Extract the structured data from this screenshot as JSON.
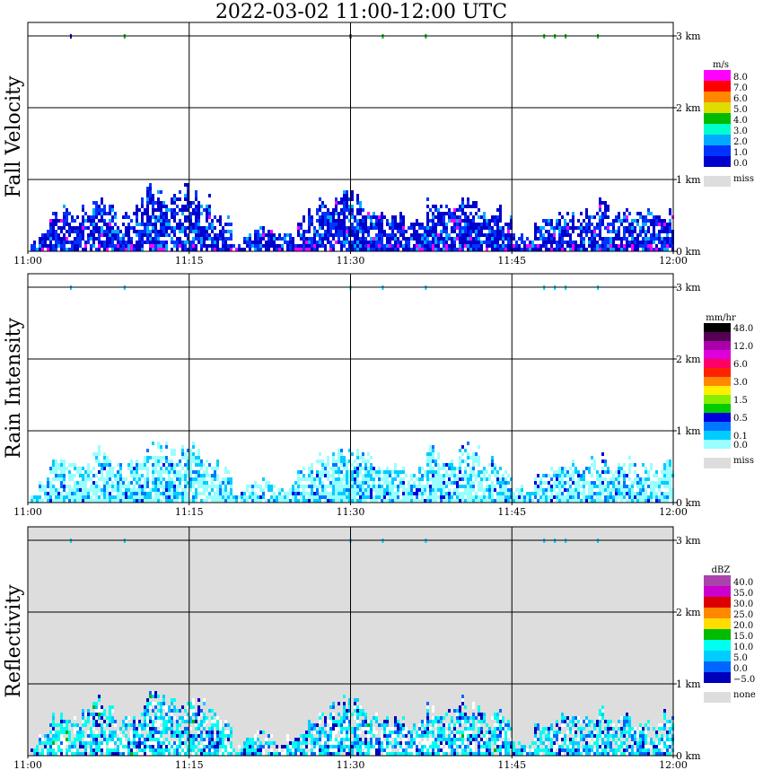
{
  "title": "2022-03-02   11:00-12:00 UTC",
  "chart_data": [
    {
      "type": "heatmap",
      "ylabel": "Fall Velocity",
      "x_ticks": [
        "11:00",
        "11:15",
        "11:30",
        "11:45",
        "12:00"
      ],
      "y_ticks": [
        "0 km",
        "1 km",
        "2 km",
        "3 km"
      ],
      "xlim": [
        "11:00",
        "12:00"
      ],
      "ylim_km": [
        0,
        3.2
      ],
      "grid": true,
      "background": "#ffffff",
      "colorbar": {
        "unit": "m/s",
        "levels": [
          {
            "label": "8.0",
            "color": "#ff00ff"
          },
          {
            "label": "7.0",
            "color": "#ff0000"
          },
          {
            "label": "6.0",
            "color": "#ff8800"
          },
          {
            "label": "5.0",
            "color": "#dddd00"
          },
          {
            "label": "4.0",
            "color": "#00bb00"
          },
          {
            "label": "3.0",
            "color": "#00ffcc"
          },
          {
            "label": "2.0",
            "color": "#00aaff"
          },
          {
            "label": "1.0",
            "color": "#0033ff"
          },
          {
            "label": "0.0",
            "color": "#0000cc"
          }
        ],
        "missing_label": "miss",
        "missing_color": "#dddddd"
      },
      "top_marks": [
        {
          "time": "11:04",
          "color": "#0000cc"
        },
        {
          "time": "11:09",
          "color": "#00bb00"
        },
        {
          "time": "11:30",
          "color": "#000000"
        },
        {
          "time": "11:33",
          "color": "#00bb00"
        },
        {
          "time": "11:37",
          "color": "#00bb00"
        },
        {
          "time": "11:48",
          "color": "#00bb00"
        },
        {
          "time": "11:49",
          "color": "#00bb00"
        },
        {
          "time": "11:50",
          "color": "#00bb00"
        },
        {
          "time": "11:53",
          "color": "#00bb00"
        }
      ],
      "echo_tops_km": [
        0.1,
        0.3,
        0.55,
        0.6,
        0.5,
        0.6,
        0.75,
        0.7,
        0.5,
        0.55,
        0.65,
        0.85,
        0.8,
        0.75,
        0.85,
        0.8,
        0.7,
        0.6,
        0.45,
        0.1,
        0.25,
        0.35,
        0.3,
        0.2,
        0.25,
        0.45,
        0.55,
        0.65,
        0.7,
        0.8,
        0.75,
        0.6,
        0.55,
        0.5,
        0.55,
        0.4,
        0.5,
        0.7,
        0.65,
        0.6,
        0.8,
        0.7,
        0.55,
        0.6,
        0.5,
        0.2,
        0.15,
        0.4,
        0.5,
        0.55,
        0.6,
        0.55,
        0.6,
        0.65,
        0.5,
        0.6,
        0.5,
        0.55,
        0.45,
        0.55
      ]
    },
    {
      "type": "heatmap",
      "ylabel": "Rain Intensity",
      "x_ticks": [
        "11:00",
        "11:15",
        "11:30",
        "11:45",
        "12:00"
      ],
      "y_ticks": [
        "0 km",
        "1 km",
        "2 km",
        "3 km"
      ],
      "xlim": [
        "11:00",
        "12:00"
      ],
      "ylim_km": [
        0,
        3.2
      ],
      "grid": true,
      "background": "#ffffff",
      "colorbar": {
        "unit": "mm/hr",
        "levels": [
          {
            "label": "48.0",
            "color": "#000000"
          },
          {
            "label": "",
            "color": "#550055"
          },
          {
            "label": "12.0",
            "color": "#aa00aa"
          },
          {
            "label": "",
            "color": "#dd00dd"
          },
          {
            "label": "6.0",
            "color": "#ff0066"
          },
          {
            "label": "",
            "color": "#ff2200"
          },
          {
            "label": "3.0",
            "color": "#ff8800"
          },
          {
            "label": "",
            "color": "#ffee00"
          },
          {
            "label": "1.5",
            "color": "#88ee00"
          },
          {
            "label": "",
            "color": "#00cc00"
          },
          {
            "label": "0.5",
            "color": "#0000dd"
          },
          {
            "label": "",
            "color": "#0077ff"
          },
          {
            "label": "0.1",
            "color": "#00ccff"
          },
          {
            "label": "0.0",
            "color": "#99ffff"
          }
        ],
        "missing_label": "miss",
        "missing_color": "#dddddd"
      },
      "top_marks": [
        {
          "time": "11:04",
          "color": "#00ccff"
        },
        {
          "time": "11:09",
          "color": "#00ccff"
        },
        {
          "time": "11:30",
          "color": "#00ccff"
        },
        {
          "time": "11:33",
          "color": "#00ccff"
        },
        {
          "time": "11:37",
          "color": "#00ccff"
        },
        {
          "time": "11:48",
          "color": "#00ccff"
        },
        {
          "time": "11:49",
          "color": "#00ccff"
        },
        {
          "time": "11:50",
          "color": "#00ccff"
        },
        {
          "time": "11:53",
          "color": "#00ccff"
        }
      ],
      "echo_tops_km": [
        0.1,
        0.3,
        0.55,
        0.6,
        0.5,
        0.6,
        0.75,
        0.7,
        0.5,
        0.55,
        0.65,
        0.85,
        0.8,
        0.75,
        0.85,
        0.8,
        0.7,
        0.6,
        0.45,
        0.1,
        0.25,
        0.35,
        0.3,
        0.2,
        0.25,
        0.45,
        0.55,
        0.65,
        0.7,
        0.8,
        0.75,
        0.6,
        0.55,
        0.5,
        0.55,
        0.4,
        0.5,
        0.7,
        0.65,
        0.6,
        0.8,
        0.7,
        0.55,
        0.6,
        0.5,
        0.2,
        0.15,
        0.4,
        0.5,
        0.55,
        0.6,
        0.55,
        0.6,
        0.65,
        0.5,
        0.6,
        0.5,
        0.55,
        0.45,
        0.55
      ]
    },
    {
      "type": "heatmap",
      "ylabel": "Reflectivity",
      "x_ticks": [
        "11:00",
        "11:15",
        "11:30",
        "11:45",
        "12:00"
      ],
      "y_ticks": [
        "0 km",
        "1 km",
        "2 km",
        "3 km"
      ],
      "xlim": [
        "11:00",
        "12:00"
      ],
      "ylim_km": [
        0,
        3.2
      ],
      "grid": true,
      "background": "#dddddd",
      "colorbar": {
        "unit": "dBZ",
        "levels": [
          {
            "label": "40.0",
            "color": "#aa44aa"
          },
          {
            "label": "35.0",
            "color": "#cc00cc"
          },
          {
            "label": "30.0",
            "color": "#dd0000"
          },
          {
            "label": "25.0",
            "color": "#ff8800"
          },
          {
            "label": "20.0",
            "color": "#ffdd00"
          },
          {
            "label": "15.0",
            "color": "#00bb00"
          },
          {
            "label": "10.0",
            "color": "#00ffee"
          },
          {
            "label": "5.0",
            "color": "#00ccff"
          },
          {
            "label": "0.0",
            "color": "#0066ff"
          },
          {
            "label": "−5.0",
            "color": "#0000bb"
          }
        ],
        "missing_label": "none",
        "missing_color": "#dddddd"
      },
      "top_marks": [
        {
          "time": "11:04",
          "color": "#00ccff"
        },
        {
          "time": "11:09",
          "color": "#00ccff"
        },
        {
          "time": "11:30",
          "color": "#00ccff"
        },
        {
          "time": "11:33",
          "color": "#00ccff"
        },
        {
          "time": "11:37",
          "color": "#00ccff"
        },
        {
          "time": "11:48",
          "color": "#00ccff"
        },
        {
          "time": "11:49",
          "color": "#00ccff"
        },
        {
          "time": "11:50",
          "color": "#00ccff"
        },
        {
          "time": "11:53",
          "color": "#00ccff"
        }
      ],
      "echo_tops_km": [
        0.1,
        0.3,
        0.55,
        0.6,
        0.5,
        0.6,
        0.75,
        0.7,
        0.5,
        0.55,
        0.65,
        0.85,
        0.8,
        0.75,
        0.85,
        0.8,
        0.7,
        0.6,
        0.45,
        0.1,
        0.25,
        0.35,
        0.3,
        0.2,
        0.25,
        0.45,
        0.55,
        0.65,
        0.7,
        0.8,
        0.75,
        0.6,
        0.55,
        0.5,
        0.55,
        0.4,
        0.5,
        0.7,
        0.65,
        0.6,
        0.8,
        0.7,
        0.55,
        0.6,
        0.5,
        0.2,
        0.15,
        0.4,
        0.5,
        0.55,
        0.6,
        0.55,
        0.6,
        0.65,
        0.5,
        0.6,
        0.5,
        0.55,
        0.45,
        0.55
      ]
    }
  ]
}
